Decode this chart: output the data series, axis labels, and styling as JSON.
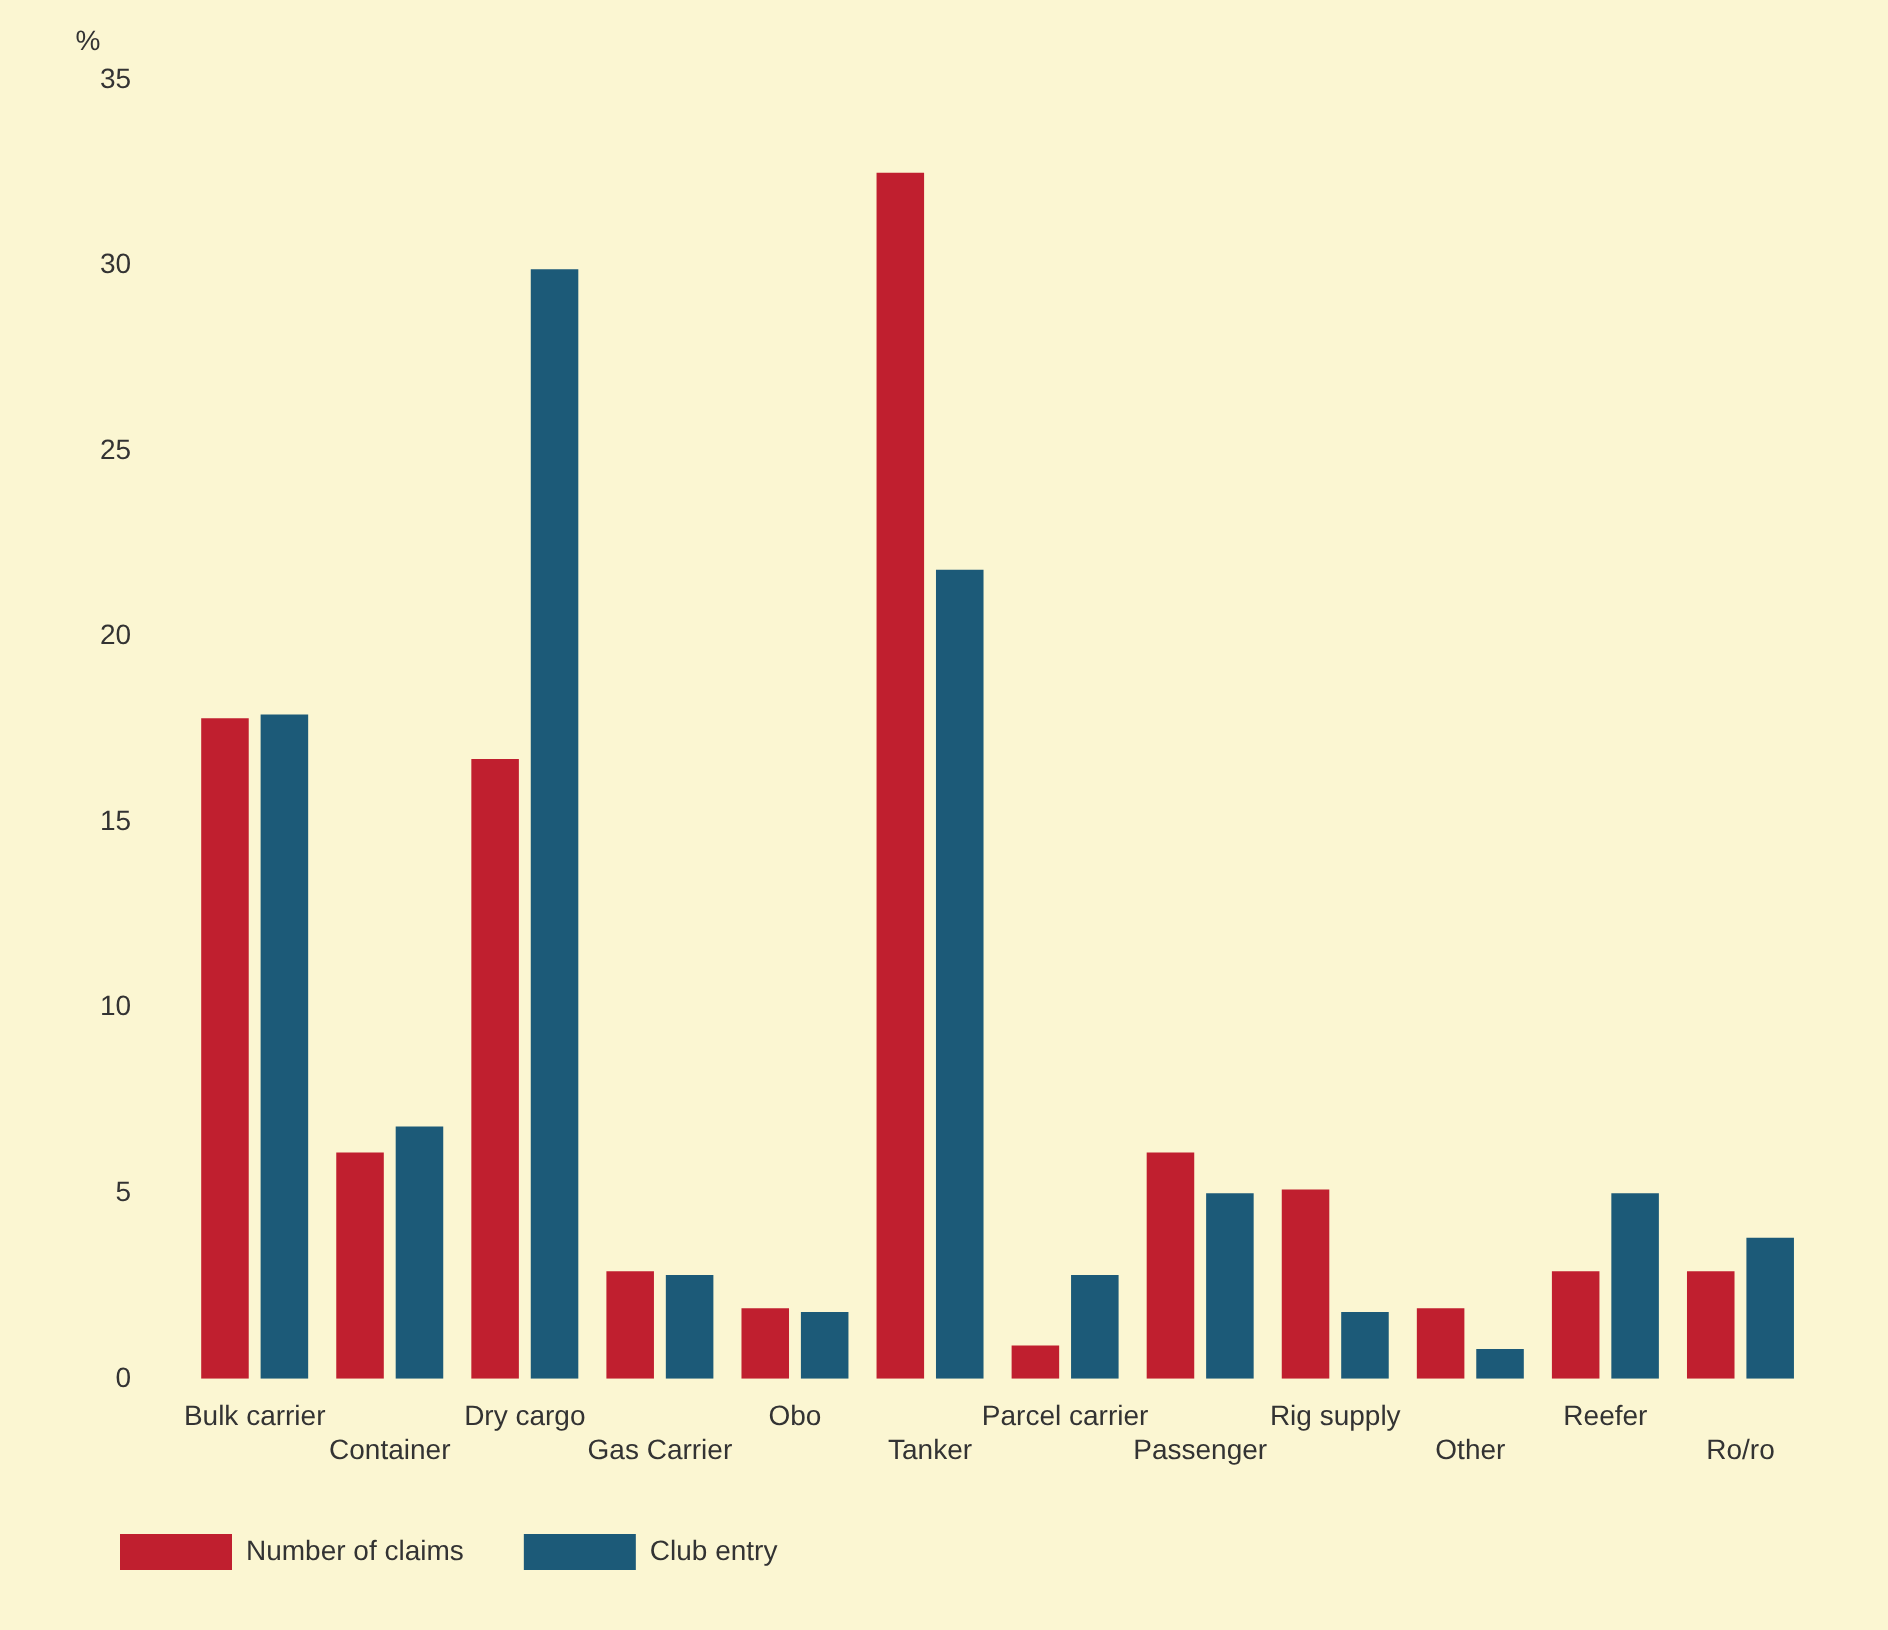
{
  "chart_data": {
    "type": "bar",
    "ylabel": "%",
    "categories": [
      "Bulk carrier",
      "Container",
      "Dry cargo",
      "Gas Carrier",
      "Obo",
      "Tanker",
      "Parcel carrier",
      "Passenger",
      "Rig supply",
      "Other",
      "Reefer",
      "Ro/ro"
    ],
    "series": [
      {
        "name": "Number of claims",
        "color": "#c01f2f",
        "values": [
          17.8,
          6.1,
          16.7,
          2.9,
          1.9,
          32.5,
          0.9,
          6.1,
          5.1,
          1.9,
          2.9,
          2.9
        ]
      },
      {
        "name": "Club entry",
        "color": "#1c5a78",
        "values": [
          17.9,
          6.8,
          29.9,
          2.8,
          1.8,
          21.8,
          2.8,
          5.0,
          1.8,
          0.8,
          5.0,
          3.8
        ]
      }
    ],
    "ylim": [
      0,
      35
    ],
    "yticks": [
      0,
      5,
      10,
      15,
      20,
      25,
      30,
      35
    ],
    "grid": false,
    "legend": "bottom left"
  }
}
